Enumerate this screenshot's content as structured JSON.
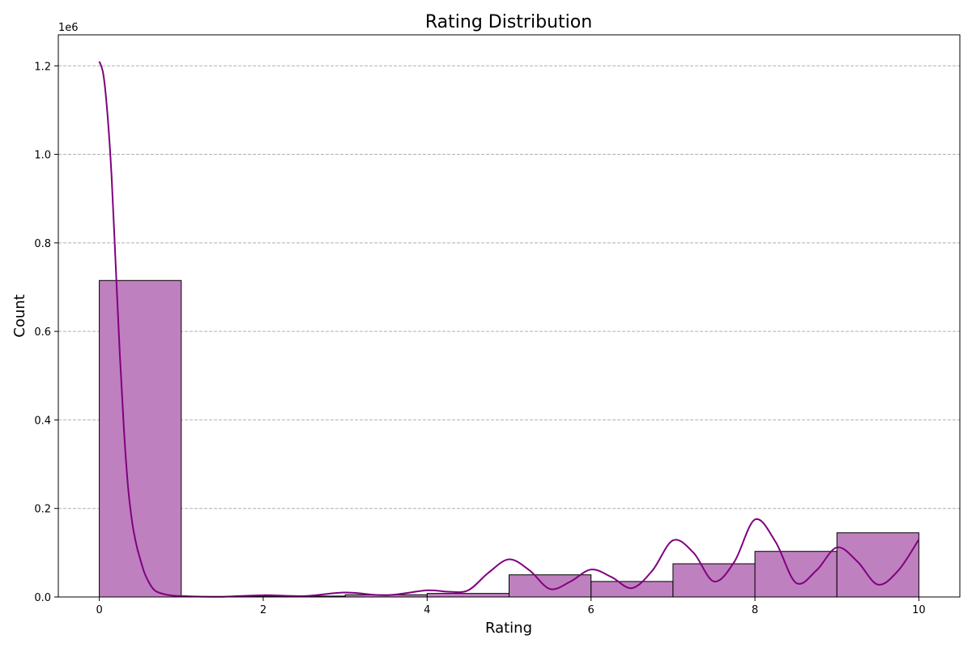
{
  "chart_data": {
    "type": "bar",
    "title": "Rating Distribution",
    "xlabel": "Rating",
    "ylabel": "Count",
    "y_offset_text": "1e6",
    "xlim": [
      -0.5,
      10.5
    ],
    "ylim": [
      0,
      1.27
    ],
    "x_ticks": [
      0,
      2,
      4,
      6,
      8,
      10
    ],
    "x_tick_labels": [
      "0",
      "2",
      "4",
      "6",
      "8",
      "10"
    ],
    "y_ticks": [
      0.0,
      0.2,
      0.4,
      0.6,
      0.8,
      1.0,
      1.2
    ],
    "y_tick_labels": [
      "0.0",
      "0.2",
      "0.4",
      "0.6",
      "0.8",
      "1.0",
      "1.2"
    ],
    "y_grid": true,
    "bins": [
      {
        "start": 0,
        "end": 1,
        "count": 0.715
      },
      {
        "start": 1,
        "end": 2,
        "count": 0.001
      },
      {
        "start": 2,
        "end": 3,
        "count": 0.002
      },
      {
        "start": 3,
        "end": 4,
        "count": 0.005
      },
      {
        "start": 4,
        "end": 5,
        "count": 0.008
      },
      {
        "start": 5,
        "end": 6,
        "count": 0.05
      },
      {
        "start": 6,
        "end": 7,
        "count": 0.035
      },
      {
        "start": 7,
        "end": 8,
        "count": 0.075
      },
      {
        "start": 8,
        "end": 9,
        "count": 0.103
      },
      {
        "start": 9,
        "end": 10,
        "count": 0.145
      }
    ],
    "kde": {
      "x": [
        0.0,
        0.05,
        0.1,
        0.15,
        0.2,
        0.25,
        0.3,
        0.35,
        0.4,
        0.45,
        0.5,
        0.55,
        0.6,
        0.65,
        0.7,
        0.8,
        0.9,
        1.0,
        1.2,
        1.5,
        2.0,
        2.5,
        3.0,
        3.5,
        4.0,
        4.25,
        4.5,
        4.75,
        5.0,
        5.25,
        5.5,
        5.75,
        6.0,
        6.25,
        6.5,
        6.75,
        7.0,
        7.25,
        7.5,
        7.75,
        8.0,
        8.25,
        8.5,
        8.75,
        9.0,
        9.25,
        9.5,
        9.75,
        10.0
      ],
      "y": [
        1.21,
        1.18,
        1.09,
        0.95,
        0.75,
        0.55,
        0.38,
        0.25,
        0.17,
        0.12,
        0.085,
        0.055,
        0.035,
        0.02,
        0.012,
        0.006,
        0.003,
        0.002,
        0.001,
        0.0005,
        0.004,
        0.002,
        0.01,
        0.004,
        0.015,
        0.012,
        0.015,
        0.055,
        0.085,
        0.06,
        0.018,
        0.035,
        0.062,
        0.045,
        0.02,
        0.06,
        0.128,
        0.1,
        0.035,
        0.08,
        0.175,
        0.125,
        0.032,
        0.06,
        0.112,
        0.08,
        0.028,
        0.06,
        0.13
      ]
    },
    "colors": {
      "bar_fill": "#bf80bf",
      "bar_edge": "#000000",
      "kde_line": "#800080",
      "grid": "#b0b0b0"
    }
  }
}
